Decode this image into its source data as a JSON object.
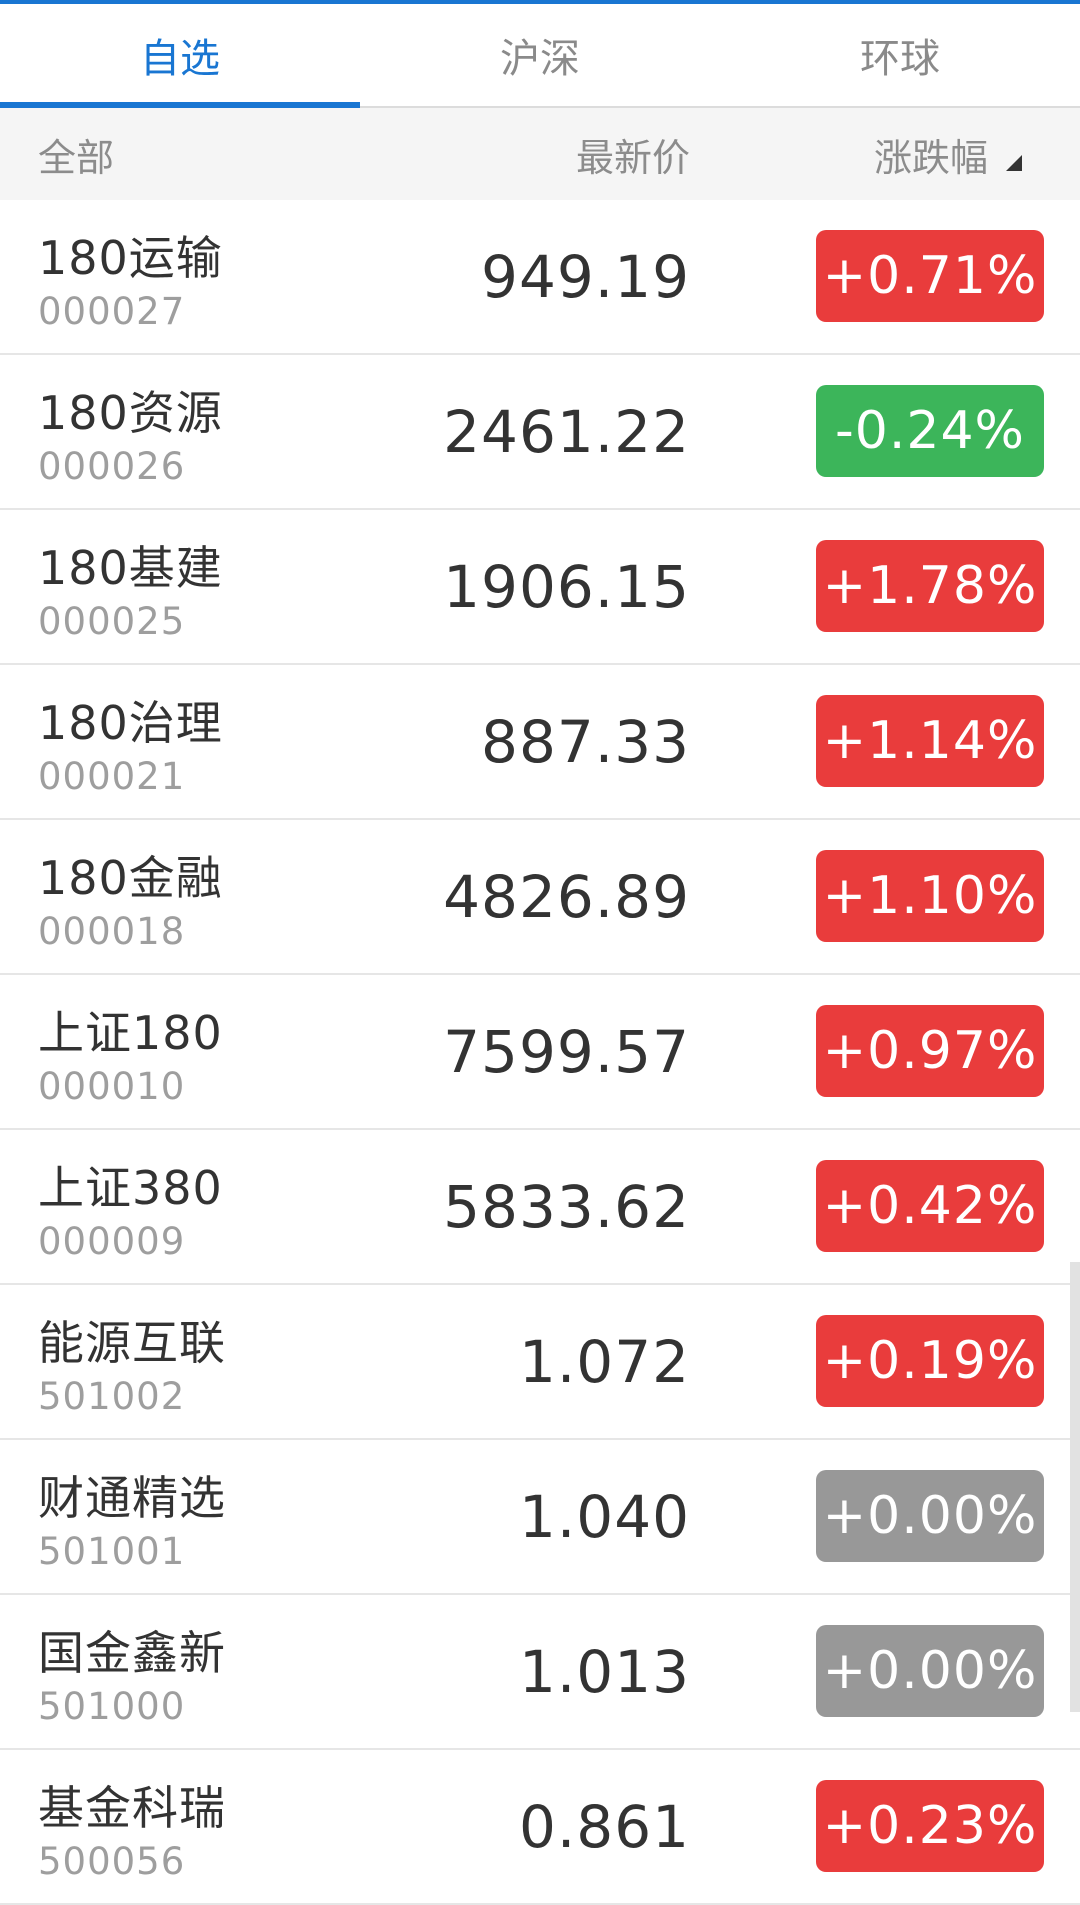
{
  "tabs": [
    {
      "label": "自选",
      "active": true
    },
    {
      "label": "沪深",
      "active": false
    },
    {
      "label": "环球",
      "active": false
    }
  ],
  "header": {
    "all_label": "全部",
    "price_label": "最新价",
    "change_label": "涨跌幅",
    "sort_icon": "sort-triangle-icon"
  },
  "colors": {
    "accent": "#1976d2",
    "up": "#e93c3c",
    "down": "#3cb55a",
    "flat": "#989898"
  },
  "rows": [
    {
      "name": "180运输",
      "code": "000027",
      "price": "949.19",
      "change": "+0.71%",
      "trend": "up"
    },
    {
      "name": "180资源",
      "code": "000026",
      "price": "2461.22",
      "change": "-0.24%",
      "trend": "down"
    },
    {
      "name": "180基建",
      "code": "000025",
      "price": "1906.15",
      "change": "+1.78%",
      "trend": "up"
    },
    {
      "name": "180治理",
      "code": "000021",
      "price": "887.33",
      "change": "+1.14%",
      "trend": "up"
    },
    {
      "name": "180金融",
      "code": "000018",
      "price": "4826.89",
      "change": "+1.10%",
      "trend": "up"
    },
    {
      "name": "上证180",
      "code": "000010",
      "price": "7599.57",
      "change": "+0.97%",
      "trend": "up"
    },
    {
      "name": "上证380",
      "code": "000009",
      "price": "5833.62",
      "change": "+0.42%",
      "trend": "up"
    },
    {
      "name": "能源互联",
      "code": "501002",
      "price": "1.072",
      "change": "+0.19%",
      "trend": "up"
    },
    {
      "name": "财通精选",
      "code": "501001",
      "price": "1.040",
      "change": "+0.00%",
      "trend": "flat"
    },
    {
      "name": "国金鑫新",
      "code": "501000",
      "price": "1.013",
      "change": "+0.00%",
      "trend": "flat"
    },
    {
      "name": "基金科瑞",
      "code": "500056",
      "price": "0.861",
      "change": "+0.23%",
      "trend": "up"
    }
  ]
}
